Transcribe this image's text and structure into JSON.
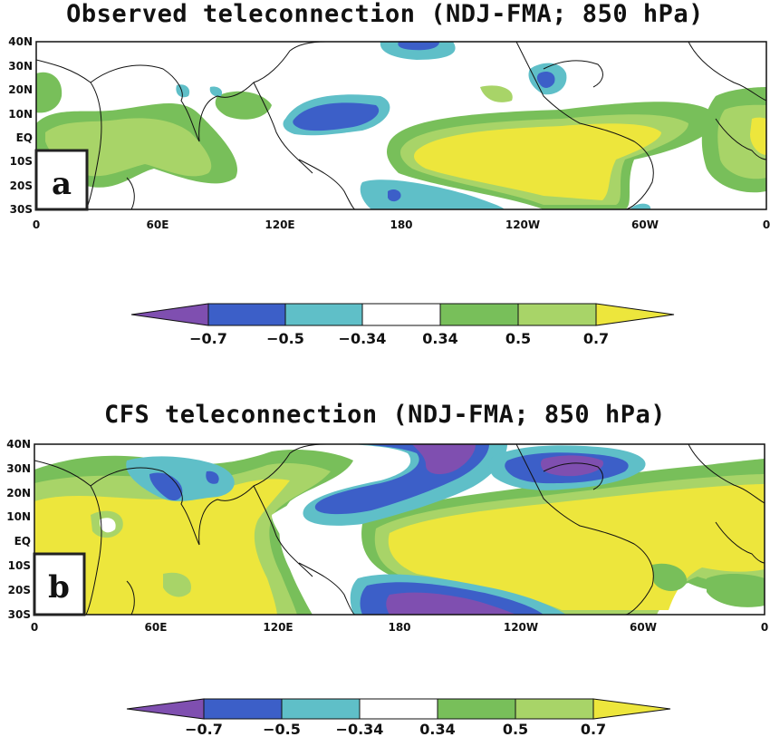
{
  "panels": [
    {
      "id": "a",
      "title": "Observed teleconnection (NDJ-FMA; 850 hPa)",
      "label": "a"
    },
    {
      "id": "b",
      "title": "CFS teleconnection (NDJ-FMA; 850 hPa)",
      "label": "b"
    }
  ],
  "axes": {
    "y_ticks": [
      "40N",
      "30N",
      "20N",
      "10N",
      "EQ",
      "10S",
      "20S",
      "30S"
    ],
    "x_ticks": [
      "0",
      "60E",
      "120E",
      "180",
      "120W",
      "60W",
      "0"
    ]
  },
  "colorbar": {
    "labels": [
      "−0.7",
      "−0.5",
      "−0.34",
      "0.34",
      "0.5",
      "0.7"
    ],
    "colors": [
      "#7f4fb0",
      "#3c5fc8",
      "#5fbfc8",
      "#ffffff",
      "#78bf5a",
      "#a8d468",
      "#ede63c"
    ]
  }
}
